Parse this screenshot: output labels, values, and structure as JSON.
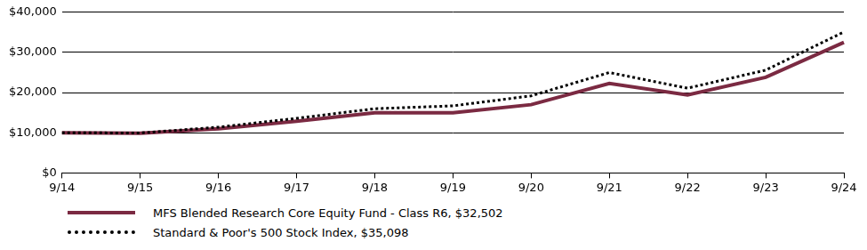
{
  "chart_data": {
    "type": "line",
    "categories": [
      "9/14",
      "9/15",
      "9/16",
      "9/17",
      "9/18",
      "9/19",
      "9/20",
      "9/21",
      "9/22",
      "9/23",
      "9/24"
    ],
    "series": [
      {
        "name": "MFS Blended Research Core Equity Fund - Class R6, $32,502",
        "color": "#7b2a42",
        "line_style": "solid",
        "values": [
          10000,
          9900,
          11000,
          12900,
          15000,
          15000,
          17000,
          22300,
          19400,
          23800,
          32502
        ]
      },
      {
        "name": "Standard & Poor's 500 Stock Index, $35,098",
        "color": "#000000",
        "line_style": "dotted",
        "values": [
          10000,
          9950,
          11400,
          13600,
          16000,
          16700,
          19200,
          25000,
          21100,
          25600,
          35098
        ]
      }
    ],
    "ylim": [
      0,
      40000
    ],
    "yticks": [
      {
        "value": 0,
        "label": "$0"
      },
      {
        "value": 10000,
        "label": "$10,000"
      },
      {
        "value": 20000,
        "label": "$20,000"
      },
      {
        "value": 30000,
        "label": "$30,000"
      },
      {
        "value": 40000,
        "label": "$40,000"
      }
    ],
    "grid": true,
    "legend": "bottom"
  }
}
